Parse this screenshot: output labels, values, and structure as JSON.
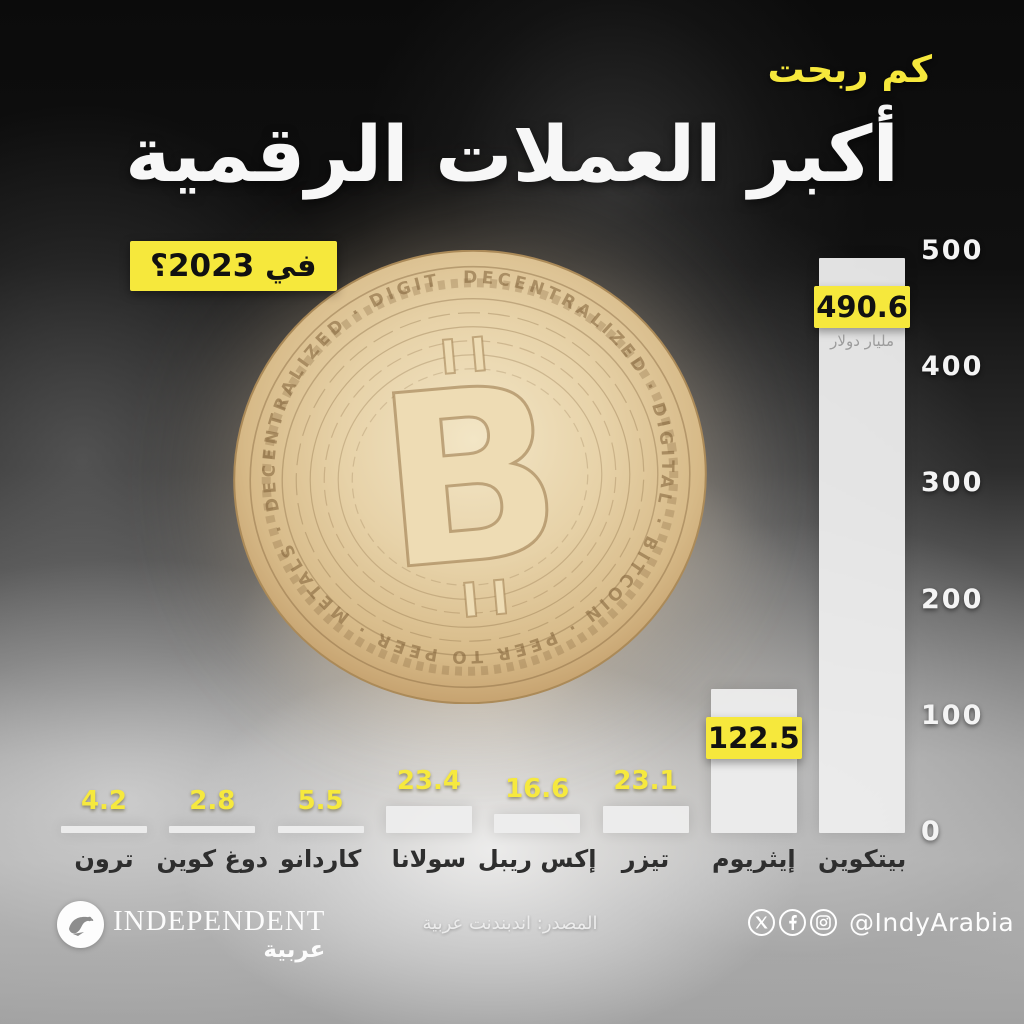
{
  "header": {
    "kicker": "كم ربحت",
    "title": "أكبر العملات الرقمية",
    "year_badge": "في 2023؟"
  },
  "chart_data": {
    "type": "bar",
    "title": "كم ربحت أكبر العملات الرقمية في 2023؟",
    "unit": "مليار دولار",
    "direction": "rtl",
    "grid": false,
    "legend": false,
    "ylim": [
      0,
      500
    ],
    "yticks": [
      500,
      400,
      300,
      200,
      100,
      0
    ],
    "categories": [
      "ترون",
      "دوغ كوين",
      "كاردانو",
      "سولانا",
      "إكس ريبل",
      "تيزر",
      "إيثريوم",
      "بيتكوين"
    ],
    "values": [
      4.2,
      2.8,
      5.5,
      23.4,
      16.6,
      23.1,
      122.5,
      490.6
    ],
    "bars": [
      {
        "label": "ترون",
        "value": "4.2",
        "boxed": false
      },
      {
        "label": "دوغ كوين",
        "value": "2.8",
        "boxed": false
      },
      {
        "label": "كاردانو",
        "value": "5.5",
        "boxed": false
      },
      {
        "label": "سولانا",
        "value": "23.4",
        "boxed": false
      },
      {
        "label": "إكس ريبل",
        "value": "16.6",
        "boxed": false
      },
      {
        "label": "تيزر",
        "value": "23.1",
        "boxed": false
      },
      {
        "label": "إيثريوم",
        "value": "122.5",
        "boxed": true
      },
      {
        "label": "بيتكوين",
        "value": "490.6",
        "boxed": true,
        "unit_note": "مليار دولار"
      }
    ]
  },
  "coin": {
    "symbol": "B",
    "rim_text": "DECENTRALIZED · DIGITAL · BITCOIN · PEER TO PEER · METALS · DECENTRALIZED · DIGITAL ·"
  },
  "footer": {
    "brand_name": "INDEPENDENT",
    "brand_ar": "عربية",
    "source": "المصدر: اندبندنت عربية",
    "handle": "@IndyArabia",
    "social_icons": [
      "x-icon",
      "facebook-icon",
      "instagram-icon"
    ]
  },
  "colors": {
    "accent_yellow": "#f6e83c",
    "bar_fill": "#ededed",
    "background_dark": "#0b0b0b",
    "text_white": "#f7f7f7",
    "category_text": "#2e2e2e",
    "unit_note_gray": "#9c9c9c"
  }
}
